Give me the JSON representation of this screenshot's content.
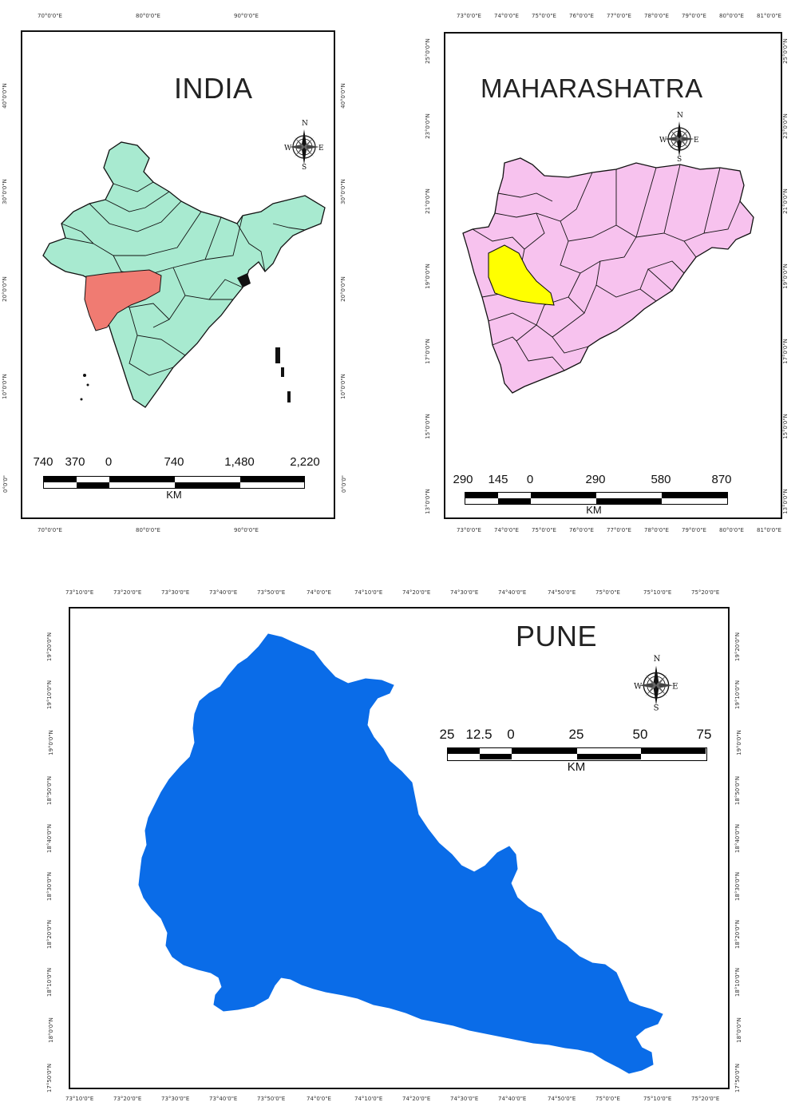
{
  "india": {
    "title": "INDIA",
    "top_ticks": [
      "70°0'0\"E",
      "80°0'0\"E",
      "90°0'0\"E"
    ],
    "bottom_ticks": [
      "70°0'0\"E",
      "80°0'0\"E",
      "90°0'0\"E"
    ],
    "left_ticks": [
      "40°0'0\"N",
      "30°0'0\"N",
      "20°0'0\"N",
      "10°0'0\"N",
      "0°0'0\""
    ],
    "right_ticks": [
      "40°0'0\"N",
      "30°0'0\"N",
      "20°0'0\"N",
      "10°0'0\"N",
      "0°0'0\""
    ],
    "scale_labels": [
      "740",
      "370",
      "0",
      "740",
      "1,480",
      "2,220"
    ],
    "scale_unit": "KM",
    "fill_color": "#a8ead0",
    "highlight_color": "#f07b72"
  },
  "maharashtra": {
    "title": "MAHARASHATRA",
    "top_ticks": [
      "73°0'0\"E",
      "74°0'0\"E",
      "75°0'0\"E",
      "76°0'0\"E",
      "77°0'0\"E",
      "78°0'0\"E",
      "79°0'0\"E",
      "80°0'0\"E",
      "81°0'0\"E"
    ],
    "bottom_ticks": [
      "73°0'0\"E",
      "74°0'0\"E",
      "75°0'0\"E",
      "76°0'0\"E",
      "77°0'0\"E",
      "78°0'0\"E",
      "79°0'0\"E",
      "80°0'0\"E",
      "81°0'0\"E"
    ],
    "left_ticks": [
      "25°0'0\"N",
      "23°0'0\"N",
      "21°0'0\"N",
      "19°0'0\"N",
      "17°0'0\"N",
      "15°0'0\"N",
      "13°0'0\"N"
    ],
    "right_ticks": [
      "25°0'0\"N",
      "23°0'0\"N",
      "21°0'0\"N",
      "19°0'0\"N",
      "17°0'0\"N",
      "15°0'0\"N",
      "13°0'0\"N"
    ],
    "scale_labels": [
      "290",
      "145",
      "0",
      "290",
      "580",
      "870"
    ],
    "scale_unit": "KM",
    "fill_color": "#f7c2ee",
    "highlight_color": "#ffff00"
  },
  "pune": {
    "title": "PUNE",
    "top_ticks": [
      "73°10'0\"E",
      "73°20'0\"E",
      "73°30'0\"E",
      "73°40'0\"E",
      "73°50'0\"E",
      "74°0'0\"E",
      "74°10'0\"E",
      "74°20'0\"E",
      "74°30'0\"E",
      "74°40'0\"E",
      "74°50'0\"E",
      "75°0'0\"E",
      "75°10'0\"E",
      "75°20'0\"E"
    ],
    "bottom_ticks": [
      "73°10'0\"E",
      "73°20'0\"E",
      "73°30'0\"E",
      "73°40'0\"E",
      "73°50'0\"E",
      "74°0'0\"E",
      "74°10'0\"E",
      "74°20'0\"E",
      "74°30'0\"E",
      "74°40'0\"E",
      "74°50'0\"E",
      "75°0'0\"E",
      "75°10'0\"E",
      "75°20'0\"E"
    ],
    "left_ticks": [
      "19°20'0\"N",
      "19°10'0\"N",
      "19°0'0\"N",
      "18°50'0\"N",
      "18°40'0\"N",
      "18°30'0\"N",
      "18°20'0\"N",
      "18°10'0\"N",
      "18°0'0\"N",
      "17°50'0\"N"
    ],
    "right_ticks": [
      "19°20'0\"N",
      "19°10'0\"N",
      "19°0'0\"N",
      "18°50'0\"N",
      "18°40'0\"N",
      "18°30'0\"N",
      "18°20'0\"N",
      "18°10'0\"N",
      "18°0'0\"N",
      "17°50'0\"N"
    ],
    "scale_labels": [
      "25",
      "12.5",
      "0",
      "25",
      "50",
      "75"
    ],
    "scale_unit": "KM",
    "fill_color": "#0a6ce8"
  },
  "compass": {
    "north": "N",
    "south": "S",
    "east": "E",
    "west": "W",
    "icon": "compass-rose-icon"
  }
}
